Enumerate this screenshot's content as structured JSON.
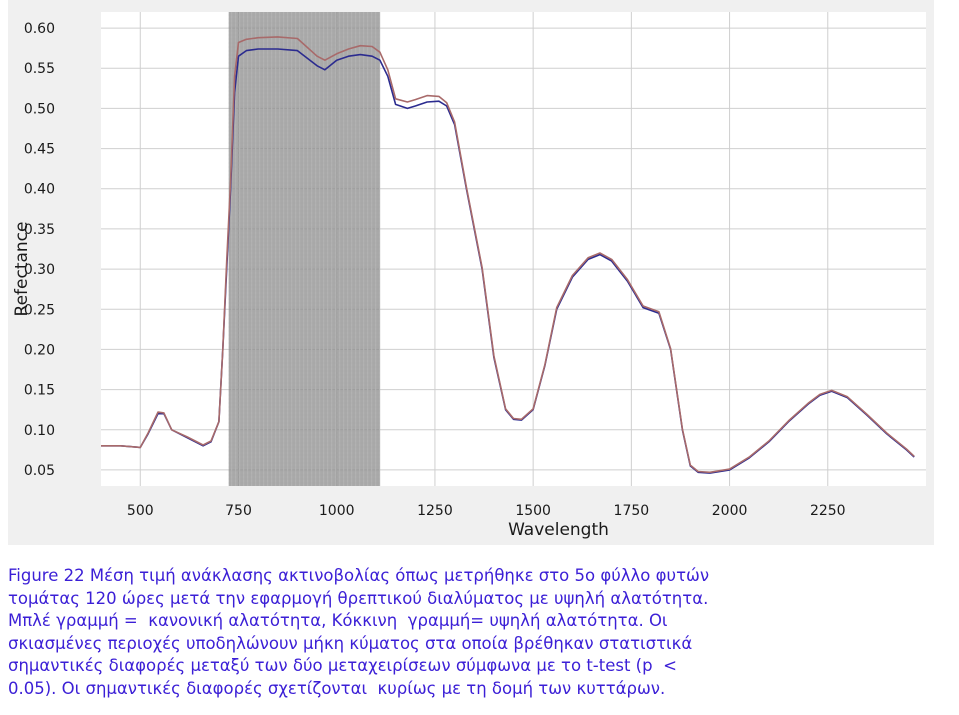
{
  "chart_data": {
    "type": "line",
    "xlabel": "Wavelength",
    "ylabel": "Refectance",
    "xlim": [
      400,
      2500
    ],
    "ylim": [
      0.03,
      0.62
    ],
    "x_ticks": [
      500,
      750,
      1000,
      1250,
      1500,
      1750,
      2000,
      2250
    ],
    "y_ticks": [
      0.05,
      0.1,
      0.15,
      0.2,
      0.25,
      0.3,
      0.35,
      0.4,
      0.45,
      0.5,
      0.55,
      0.6
    ],
    "x_tick_labels": [
      "500",
      "750",
      "1000",
      "1250",
      "1500",
      "1750",
      "2000",
      "2250"
    ],
    "y_tick_labels": [
      "0.05",
      "0.10",
      "0.15",
      "0.20",
      "0.25",
      "0.30",
      "0.35",
      "0.40",
      "0.45",
      "0.50",
      "0.55",
      "0.60"
    ],
    "grid": true,
    "shaded_region": [
      725,
      1110
    ],
    "colors": {
      "series_blue": "#2b2b8f",
      "series_red": "#a86a6a",
      "shade": "#8c8c8c",
      "grid": "#cfcfcf",
      "plot_bg": "#ffffff",
      "frame_bg": "#f0f0f0"
    },
    "series": [
      {
        "color": "#2b2b8f",
        "x": [
          400,
          450,
          500,
          520,
          545,
          560,
          580,
          620,
          660,
          680,
          700,
          710,
          720,
          730,
          740,
          750,
          770,
          800,
          850,
          900,
          950,
          970,
          1000,
          1030,
          1060,
          1090,
          1110,
          1130,
          1150,
          1180,
          1200,
          1230,
          1260,
          1280,
          1300,
          1330,
          1370,
          1400,
          1430,
          1450,
          1470,
          1500,
          1530,
          1560,
          1600,
          1640,
          1670,
          1700,
          1740,
          1780,
          1820,
          1850,
          1880,
          1900,
          1920,
          1950,
          2000,
          2050,
          2100,
          2150,
          2200,
          2230,
          2260,
          2300,
          2350,
          2400,
          2450,
          2470
        ],
        "y": [
          0.08,
          0.08,
          0.078,
          0.095,
          0.12,
          0.12,
          0.1,
          0.09,
          0.08,
          0.085,
          0.11,
          0.2,
          0.3,
          0.4,
          0.52,
          0.565,
          0.572,
          0.574,
          0.574,
          0.572,
          0.553,
          0.548,
          0.56,
          0.565,
          0.567,
          0.565,
          0.56,
          0.54,
          0.505,
          0.5,
          0.503,
          0.508,
          0.509,
          0.503,
          0.48,
          0.4,
          0.3,
          0.19,
          0.125,
          0.113,
          0.112,
          0.125,
          0.18,
          0.25,
          0.29,
          0.312,
          0.318,
          0.31,
          0.285,
          0.252,
          0.245,
          0.2,
          0.1,
          0.055,
          0.047,
          0.046,
          0.05,
          0.065,
          0.085,
          0.11,
          0.132,
          0.143,
          0.148,
          0.14,
          0.118,
          0.095,
          0.075,
          0.066
        ]
      },
      {
        "color": "#a86a6a",
        "x": [
          400,
          450,
          500,
          520,
          545,
          560,
          580,
          620,
          660,
          680,
          700,
          710,
          720,
          730,
          740,
          750,
          770,
          800,
          850,
          900,
          950,
          970,
          1000,
          1030,
          1060,
          1090,
          1110,
          1130,
          1150,
          1180,
          1200,
          1230,
          1260,
          1280,
          1300,
          1330,
          1370,
          1400,
          1430,
          1450,
          1470,
          1500,
          1530,
          1560,
          1600,
          1640,
          1670,
          1700,
          1740,
          1780,
          1820,
          1850,
          1880,
          1900,
          1920,
          1950,
          2000,
          2050,
          2100,
          2150,
          2200,
          2230,
          2260,
          2300,
          2350,
          2400,
          2450,
          2470
        ],
        "y": [
          0.08,
          0.08,
          0.078,
          0.096,
          0.122,
          0.121,
          0.1,
          0.091,
          0.081,
          0.086,
          0.11,
          0.2,
          0.31,
          0.41,
          0.54,
          0.582,
          0.586,
          0.588,
          0.589,
          0.587,
          0.565,
          0.56,
          0.568,
          0.574,
          0.578,
          0.577,
          0.57,
          0.548,
          0.512,
          0.508,
          0.511,
          0.516,
          0.515,
          0.507,
          0.483,
          0.402,
          0.302,
          0.192,
          0.126,
          0.114,
          0.113,
          0.126,
          0.181,
          0.252,
          0.292,
          0.314,
          0.32,
          0.312,
          0.287,
          0.254,
          0.247,
          0.201,
          0.101,
          0.056,
          0.048,
          0.047,
          0.051,
          0.066,
          0.086,
          0.111,
          0.133,
          0.144,
          0.149,
          0.141,
          0.119,
          0.096,
          0.076,
          0.067
        ]
      }
    ]
  },
  "caption": {
    "line1": "Figure 22 Μέση τιμή ανάκλασης ακτινοβολίας όπως μετρήθηκε στο 5ο φύλλο φυτών",
    "line2": "τομάτας 120 ώρες μετά την εφαρμογή θρεπτικού διαλύματος με υψηλή αλατότητα.",
    "line3": "Μπλέ γραμμή =  κανονική αλατότητα, Κόκκινη  γραμμή= υψηλή αλατότητα. Οι",
    "line4": "σκιασμένες περιοχές υποδηλώνουν μήκη κύματος στα οποία βρέθηκαν στατιστικά",
    "line5": "σημαντικές διαφορές μεταξύ των δύο μεταχειρίσεων σύμφωνα με το t-test (p  <",
    "line6": "0.05). Οι σημαντικές διαφορές σχετίζονται  κυρίως με τη δομή των κυττάρων."
  }
}
